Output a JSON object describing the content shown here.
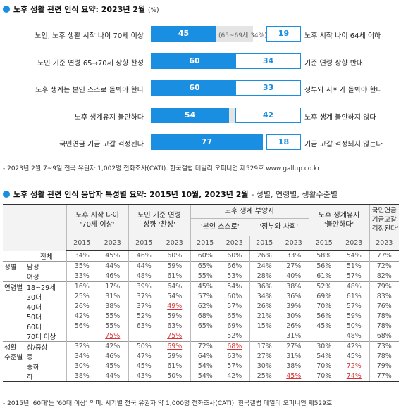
{
  "section1": {
    "title": "노후 생활 관련 인식 요약: 2023년 2월",
    "unit": "(%)"
  },
  "chart_data": {
    "type": "bar",
    "title": "노후 생활 관련 인식 요약: 2023년 2월 (%)",
    "rows": [
      {
        "left_label": "노인, 노후 생활 시작 나이 70세 이상",
        "left_value": 45,
        "right_value": 19,
        "right_label": "노후 시작 나이 64세 이하",
        "note": "(65~69세 34%)"
      },
      {
        "left_label": "노인 기준 연령 65→70세 상향 찬성",
        "left_value": 60,
        "right_value": 34,
        "right_label": "기준 연령 상향 반대",
        "note": ""
      },
      {
        "left_label": "노후 생계는 본인 스스로 돌봐야 한다",
        "left_value": 60,
        "right_value": 33,
        "right_label": "정부와 사회가 돌봐야 한다",
        "note": ""
      },
      {
        "left_label": "노후 생계유지 불안하다",
        "left_value": 54,
        "right_value": 42,
        "right_label": "노후 생계 불안하지 않다",
        "note": ""
      },
      {
        "left_label": "국민연금 기금 고갈 걱정된다",
        "left_value": 77,
        "right_value": 18,
        "right_label": "기금 고갈 걱정되지 않는다",
        "note": ""
      }
    ]
  },
  "source1": "- 2023년 2월 7~9일 전국 유권자 1,002명 전화조사(CATI). 한국갤럽 데일리 오피니언 제529호 www.gallup.co.kr",
  "section2": {
    "title_bold": "노후 생활 관련 인식 응답자 특성별 요약: 2015년 10월, 2023년 2월",
    "title_light": "- 성별, 연령별, 생활수준별"
  },
  "table": {
    "headers": {
      "g1": "노후 시작 나이\n'70세 이상'",
      "g2": "노인 기준 연령\n상향 '찬성'",
      "g3": "노후 생계 부양자",
      "g3a": "'본인 스스로'",
      "g3b": "'정부와 사회'",
      "g4": "노후 생계유지\n'불안하다'",
      "g5": "국민연금\n기금고갈\n'걱정된다'"
    },
    "years": [
      "2015",
      "2023",
      "2015",
      "2023",
      "2015",
      "2023",
      "2015",
      "2023",
      "2015",
      "2023",
      "2023"
    ],
    "rows": [
      {
        "c1": "",
        "c2": "전체",
        "v": [
          "34%",
          "45%",
          "46%",
          "60%",
          "60%",
          "60%",
          "26%",
          "33%",
          "58%",
          "54%",
          "77%"
        ],
        "red": []
      },
      {
        "c1": "성별",
        "c2": "남성",
        "v": [
          "35%",
          "44%",
          "44%",
          "59%",
          "65%",
          "66%",
          "24%",
          "27%",
          "56%",
          "51%",
          "72%"
        ],
        "red": []
      },
      {
        "c1": "",
        "c2": "여성",
        "v": [
          "33%",
          "46%",
          "48%",
          "61%",
          "55%",
          "53%",
          "28%",
          "40%",
          "61%",
          "57%",
          "82%"
        ],
        "red": []
      },
      {
        "c1": "연령별",
        "c2": "18~29세",
        "v": [
          "16%",
          "17%",
          "39%",
          "64%",
          "45%",
          "54%",
          "36%",
          "38%",
          "52%",
          "48%",
          "79%"
        ],
        "red": []
      },
      {
        "c1": "",
        "c2": "30대",
        "v": [
          "25%",
          "31%",
          "37%",
          "54%",
          "57%",
          "60%",
          "34%",
          "36%",
          "69%",
          "61%",
          "83%"
        ],
        "red": []
      },
      {
        "c1": "",
        "c2": "40대",
        "v": [
          "26%",
          "38%",
          "37%",
          "49%",
          "62%",
          "57%",
          "26%",
          "39%",
          "70%",
          "57%",
          "76%"
        ],
        "red": [
          3
        ]
      },
      {
        "c1": "",
        "c2": "50대",
        "v": [
          "42%",
          "55%",
          "52%",
          "59%",
          "68%",
          "65%",
          "21%",
          "30%",
          "56%",
          "59%",
          "78%"
        ],
        "red": []
      },
      {
        "c1": "",
        "c2": "60대",
        "v": [
          "56%",
          "55%",
          "63%",
          "63%",
          "65%",
          "69%",
          "15%",
          "26%",
          "45%",
          "50%",
          "78%"
        ],
        "red": []
      },
      {
        "c1": "",
        "c2": "70대 이상",
        "v": [
          "",
          "75%",
          "",
          "75%",
          "",
          "52%",
          "",
          "31%",
          "",
          "48%",
          "68%"
        ],
        "red": [
          1,
          3
        ]
      },
      {
        "c1": "생활",
        "c2": "상/중상",
        "v": [
          "32%",
          "42%",
          "50%",
          "69%",
          "72%",
          "68%",
          "17%",
          "27%",
          "30%",
          "42%",
          "73%"
        ],
        "red": [
          3,
          5
        ]
      },
      {
        "c1": "수준별",
        "c2": "중",
        "v": [
          "34%",
          "46%",
          "47%",
          "59%",
          "64%",
          "63%",
          "27%",
          "31%",
          "54%",
          "45%",
          "78%"
        ],
        "red": []
      },
      {
        "c1": "",
        "c2": "중하",
        "v": [
          "30%",
          "45%",
          "45%",
          "61%",
          "54%",
          "57%",
          "30%",
          "38%",
          "70%",
          "72%",
          "79%"
        ],
        "red": [
          9
        ]
      },
      {
        "c1": "",
        "c2": "하",
        "v": [
          "38%",
          "44%",
          "43%",
          "50%",
          "54%",
          "42%",
          "25%",
          "45%",
          "70%",
          "74%",
          "77%"
        ],
        "red": [
          7,
          9
        ]
      }
    ]
  },
  "source2": "- 2015년 '60대'는 '60대 이상' 의미. 시기별 전국 유권자 약 1,000명 전화조사(CATI). 한국갤럽 데일리 오피니언 제529호"
}
